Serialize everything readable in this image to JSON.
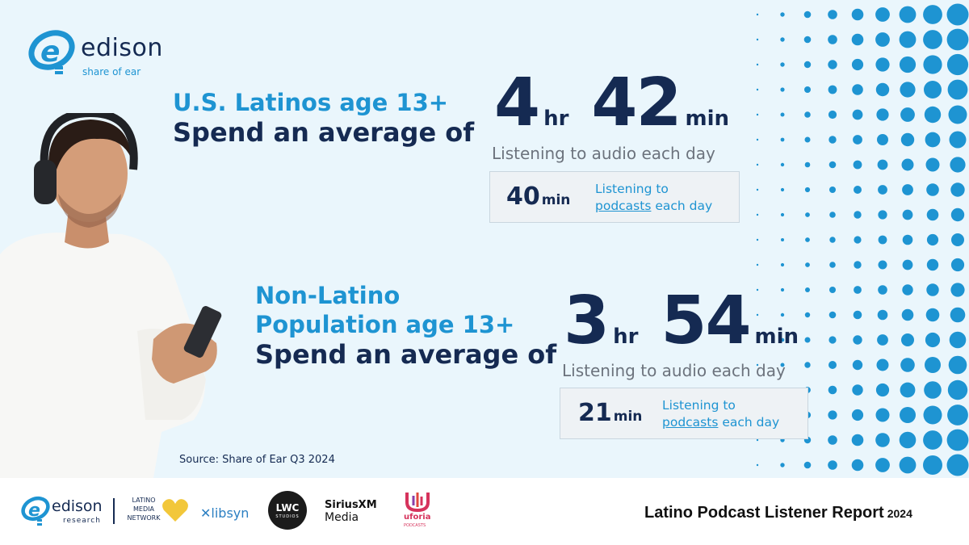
{
  "brand": {
    "name": "edison",
    "tagline": "share of ear"
  },
  "latinos": {
    "heading_line1": "U.S. Latinos age 13+",
    "heading_line2": "Spend an average of",
    "hours": "4",
    "hours_unit": "hr",
    "minutes": "42",
    "minutes_unit": "min",
    "listening_caption": "Listening to audio each day",
    "podcast_minutes": "40",
    "podcast_unit": "min",
    "podcast_line1": "Listening to",
    "podcast_link": "podcasts",
    "podcast_line2_rest": " each day"
  },
  "non_latinos": {
    "heading_line1": "Non-Latino",
    "heading_line2": "Population age 13+",
    "heading_line3": "Spend an average of",
    "hours": "3",
    "hours_unit": "hr",
    "minutes": "54",
    "minutes_unit": "min",
    "listening_caption": "Listening to audio each day",
    "podcast_minutes": "21",
    "podcast_unit": "min",
    "podcast_line1": "Listening to",
    "podcast_link": "podcasts",
    "podcast_line2_rest": " each day"
  },
  "source": "Source: Share of Ear Q3 2024",
  "footer": {
    "edison_name": "edison",
    "edison_sub": "research",
    "latino_media_line1": "LATINO",
    "latino_media_line2": "MEDIA",
    "latino_media_line3": "NETWORK",
    "libsyn": "libsyn",
    "lwc_line1": "LWC",
    "lwc_line2": "STUDIOS",
    "siriusxm_line1": "SiriusXM",
    "siriusxm_line2": "Media",
    "uforia_line1": "uforia",
    "uforia_line2": "PODCASTS",
    "report_title": "Latino Podcast Listener Report",
    "report_year": "2024"
  },
  "colors": {
    "navy": "#152a52",
    "blue": "#1e94d2",
    "background": "#eaf6fc"
  }
}
